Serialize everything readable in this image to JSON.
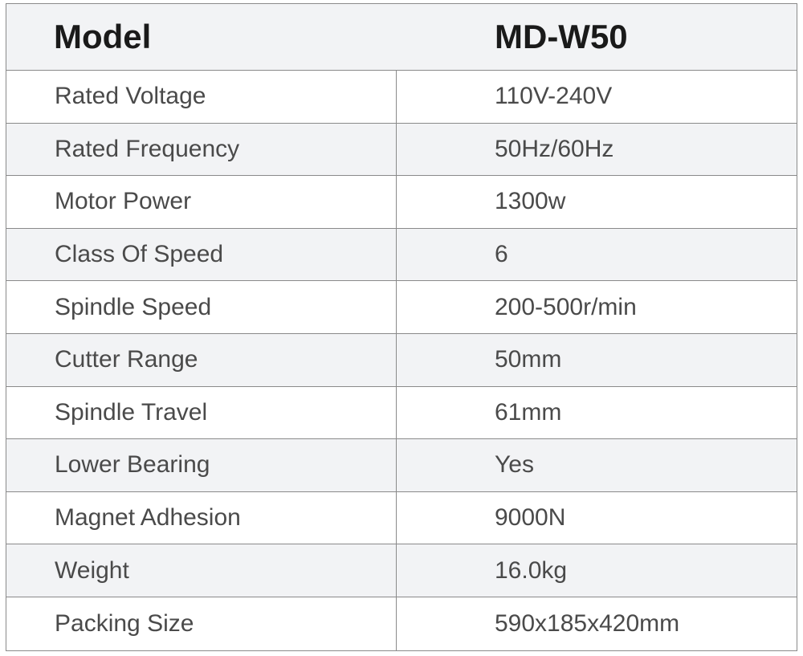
{
  "header": {
    "label": "Model",
    "value": "MD-W50"
  },
  "rows": [
    {
      "label": "Rated Voltage",
      "value": "110V-240V"
    },
    {
      "label": "Rated Frequency",
      "value": "50Hz/60Hz"
    },
    {
      "label": "Motor Power",
      "value": "1300w"
    },
    {
      "label": "Class Of Speed",
      "value": "6"
    },
    {
      "label": "Spindle Speed",
      "value": "200-500r/min"
    },
    {
      "label": "Cutter Range",
      "value": "50mm"
    },
    {
      "label": "Spindle Travel",
      "value": "61mm"
    },
    {
      "label": "Lower Bearing",
      "value": "Yes"
    },
    {
      "label": "Magnet Adhesion",
      "value": "9000N"
    },
    {
      "label": "Weight",
      "value": "16.0kg"
    },
    {
      "label": "Packing Size",
      "value": "590x185x420mm"
    }
  ]
}
